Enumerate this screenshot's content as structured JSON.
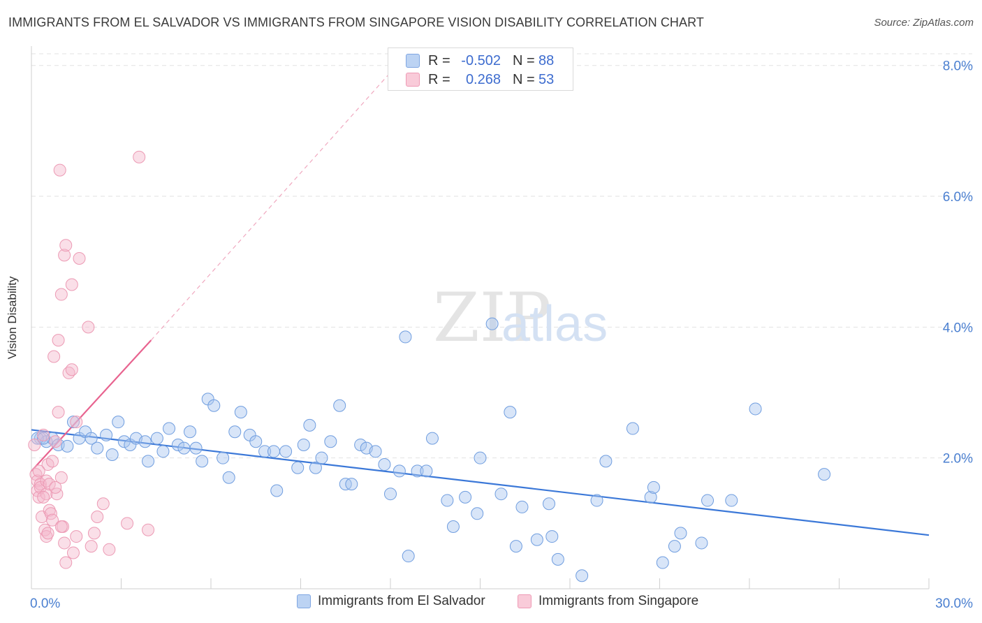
{
  "title": "IMMIGRANTS FROM EL SALVADOR VS IMMIGRANTS FROM SINGAPORE VISION DISABILITY CORRELATION CHART",
  "source": "Source: ZipAtlas.com",
  "watermark": {
    "zip": "ZIP",
    "atlas": "atlas"
  },
  "stats": {
    "r_label": "R =",
    "n_label": "N =",
    "rows": [
      {
        "r": "-0.502",
        "n": "88",
        "color": "#a9c6ef"
      },
      {
        "r": "0.268",
        "n": "53",
        "color": "#f5b8cb"
      }
    ]
  },
  "legend": [
    {
      "label": "Immigrants from El Salvador",
      "color": "#a9c6ef"
    },
    {
      "label": "Immigrants from Singapore",
      "color": "#f5b8cb"
    }
  ],
  "chart_data": {
    "type": "scatter",
    "ylabel": "Vision Disability",
    "xlabel": "",
    "xlim": [
      0,
      30
    ],
    "ylim": [
      0,
      8.2
    ],
    "x_tick_labels": [
      "0.0%",
      "30.0%"
    ],
    "y_tick_labels": [
      "2.0%",
      "4.0%",
      "6.0%",
      "8.0%"
    ],
    "y_ticks": [
      2,
      4,
      6,
      8
    ],
    "colors": {
      "el_salvador": "#3b78d8",
      "singapore": "#e8638f",
      "axis_text": "#4a7fd0"
    },
    "series": [
      {
        "name": "Immigrants from El Salvador",
        "trend": {
          "x0": 0,
          "y0": 2.43,
          "x1": 30,
          "y1": 0.82
        },
        "points": [
          [
            0.3,
            2.3
          ],
          [
            0.5,
            2.25
          ],
          [
            0.7,
            2.3
          ],
          [
            0.9,
            2.2
          ],
          [
            1.2,
            2.18
          ],
          [
            1.4,
            2.55
          ],
          [
            1.6,
            2.3
          ],
          [
            1.8,
            2.4
          ],
          [
            2.0,
            2.3
          ],
          [
            2.2,
            2.15
          ],
          [
            2.5,
            2.35
          ],
          [
            2.7,
            2.05
          ],
          [
            2.9,
            2.55
          ],
          [
            3.1,
            2.25
          ],
          [
            3.3,
            2.2
          ],
          [
            3.5,
            2.3
          ],
          [
            3.8,
            2.25
          ],
          [
            3.9,
            1.95
          ],
          [
            4.2,
            2.3
          ],
          [
            4.4,
            2.1
          ],
          [
            4.6,
            2.45
          ],
          [
            4.9,
            2.2
          ],
          [
            5.1,
            2.15
          ],
          [
            5.3,
            2.4
          ],
          [
            5.5,
            2.15
          ],
          [
            5.7,
            1.95
          ],
          [
            5.9,
            2.9
          ],
          [
            6.1,
            2.8
          ],
          [
            6.4,
            2.0
          ],
          [
            6.6,
            1.7
          ],
          [
            6.8,
            2.4
          ],
          [
            7.0,
            2.7
          ],
          [
            7.3,
            2.35
          ],
          [
            7.5,
            2.25
          ],
          [
            7.8,
            2.1
          ],
          [
            8.1,
            2.1
          ],
          [
            8.2,
            1.5
          ],
          [
            8.5,
            2.1
          ],
          [
            8.9,
            1.85
          ],
          [
            9.1,
            2.2
          ],
          [
            9.3,
            2.5
          ],
          [
            9.5,
            1.85
          ],
          [
            9.7,
            2.0
          ],
          [
            10.0,
            2.25
          ],
          [
            10.3,
            2.8
          ],
          [
            10.5,
            1.6
          ],
          [
            10.7,
            1.6
          ],
          [
            11.0,
            2.2
          ],
          [
            11.2,
            2.15
          ],
          [
            11.5,
            2.1
          ],
          [
            11.8,
            1.9
          ],
          [
            12.0,
            1.45
          ],
          [
            12.3,
            1.8
          ],
          [
            12.6,
            0.5
          ],
          [
            12.9,
            1.8
          ],
          [
            13.2,
            1.8
          ],
          [
            13.4,
            2.3
          ],
          [
            13.9,
            1.35
          ],
          [
            14.1,
            0.95
          ],
          [
            14.5,
            1.4
          ],
          [
            14.9,
            1.15
          ],
          [
            15.0,
            2.0
          ],
          [
            15.4,
            4.05
          ],
          [
            15.7,
            1.45
          ],
          [
            16.0,
            2.7
          ],
          [
            16.2,
            0.65
          ],
          [
            16.4,
            1.25
          ],
          [
            16.9,
            0.75
          ],
          [
            17.3,
            1.3
          ],
          [
            17.4,
            0.8
          ],
          [
            17.6,
            0.45
          ],
          [
            18.4,
            0.2
          ],
          [
            18.9,
            1.35
          ],
          [
            19.2,
            1.95
          ],
          [
            20.1,
            2.45
          ],
          [
            20.7,
            1.4
          ],
          [
            20.8,
            1.55
          ],
          [
            21.1,
            0.4
          ],
          [
            21.5,
            0.65
          ],
          [
            21.7,
            0.85
          ],
          [
            22.4,
            0.7
          ],
          [
            22.6,
            1.35
          ],
          [
            23.4,
            1.35
          ],
          [
            24.2,
            2.75
          ],
          [
            26.5,
            1.75
          ],
          [
            12.5,
            3.85
          ],
          [
            0.2,
            2.3
          ],
          [
            0.4,
            2.3
          ]
        ]
      },
      {
        "name": "Immigrants from Singapore",
        "trend": {
          "x0": 0,
          "y0": 1.8,
          "x1": 4,
          "y1": 3.8,
          "dash_to_x": 12.6,
          "dash_to_y": 8.2
        },
        "points": [
          [
            0.1,
            2.2
          ],
          [
            0.15,
            1.75
          ],
          [
            0.2,
            1.65
          ],
          [
            0.2,
            1.5
          ],
          [
            0.25,
            1.4
          ],
          [
            0.3,
            1.6
          ],
          [
            0.3,
            1.55
          ],
          [
            0.35,
            1.1
          ],
          [
            0.4,
            2.35
          ],
          [
            0.45,
            0.9
          ],
          [
            0.5,
            1.45
          ],
          [
            0.5,
            1.65
          ],
          [
            0.5,
            0.8
          ],
          [
            0.55,
            1.9
          ],
          [
            0.55,
            0.85
          ],
          [
            0.6,
            1.2
          ],
          [
            0.65,
            1.15
          ],
          [
            0.7,
            1.05
          ],
          [
            0.7,
            1.95
          ],
          [
            0.75,
            3.55
          ],
          [
            0.8,
            2.25
          ],
          [
            0.85,
            1.45
          ],
          [
            0.9,
            2.7
          ],
          [
            0.9,
            3.8
          ],
          [
            0.95,
            6.4
          ],
          [
            1.0,
            1.7
          ],
          [
            1.0,
            4.5
          ],
          [
            1.05,
            0.95
          ],
          [
            1.1,
            5.1
          ],
          [
            1.1,
            0.7
          ],
          [
            1.15,
            5.25
          ],
          [
            1.15,
            0.4
          ],
          [
            1.25,
            3.3
          ],
          [
            1.35,
            4.65
          ],
          [
            1.35,
            3.35
          ],
          [
            1.4,
            0.55
          ],
          [
            1.5,
            2.55
          ],
          [
            1.5,
            0.8
          ],
          [
            1.6,
            5.05
          ],
          [
            1.9,
            4.0
          ],
          [
            2.0,
            0.65
          ],
          [
            2.1,
            0.85
          ],
          [
            2.2,
            1.1
          ],
          [
            2.4,
            1.3
          ],
          [
            2.6,
            0.6
          ],
          [
            3.2,
            1.0
          ],
          [
            3.6,
            6.6
          ],
          [
            3.9,
            0.9
          ],
          [
            0.4,
            1.4
          ],
          [
            0.25,
            1.8
          ],
          [
            0.6,
            1.6
          ],
          [
            1.0,
            0.95
          ],
          [
            0.8,
            1.55
          ]
        ]
      }
    ]
  }
}
